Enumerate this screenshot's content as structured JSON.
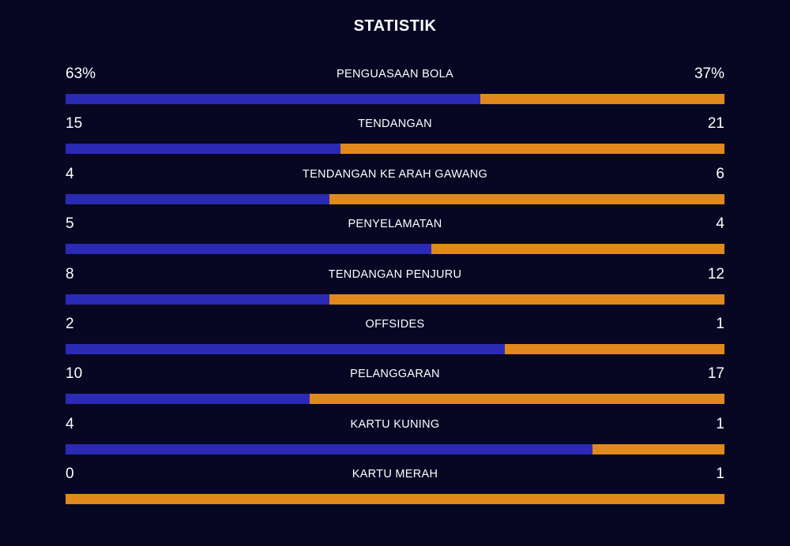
{
  "title": "STATISTIK",
  "colors": {
    "background": "#080723",
    "home": "#2a2ab4",
    "away": "#e0891c",
    "text": "#ffffff"
  },
  "stats": [
    {
      "label": "PENGUASAAN BOLA",
      "home": "63%",
      "away": "37%",
      "home_share": 0.63
    },
    {
      "label": "TENDANGAN",
      "home": "15",
      "away": "21",
      "home_share": 0.4167
    },
    {
      "label": "TENDANGAN KE ARAH GAWANG",
      "home": "4",
      "away": "6",
      "home_share": 0.4
    },
    {
      "label": "PENYELAMATAN",
      "home": "5",
      "away": "4",
      "home_share": 0.5556
    },
    {
      "label": "TENDANGAN PENJURU",
      "home": "8",
      "away": "12",
      "home_share": 0.4
    },
    {
      "label": "OFFSIDES",
      "home": "2",
      "away": "1",
      "home_share": 0.6667
    },
    {
      "label": "PELANGGARAN",
      "home": "10",
      "away": "17",
      "home_share": 0.3704
    },
    {
      "label": "KARTU KUNING",
      "home": "4",
      "away": "1",
      "home_share": 0.8
    },
    {
      "label": "KARTU MERAH",
      "home": "0",
      "away": "1",
      "home_share": 0.0
    }
  ]
}
